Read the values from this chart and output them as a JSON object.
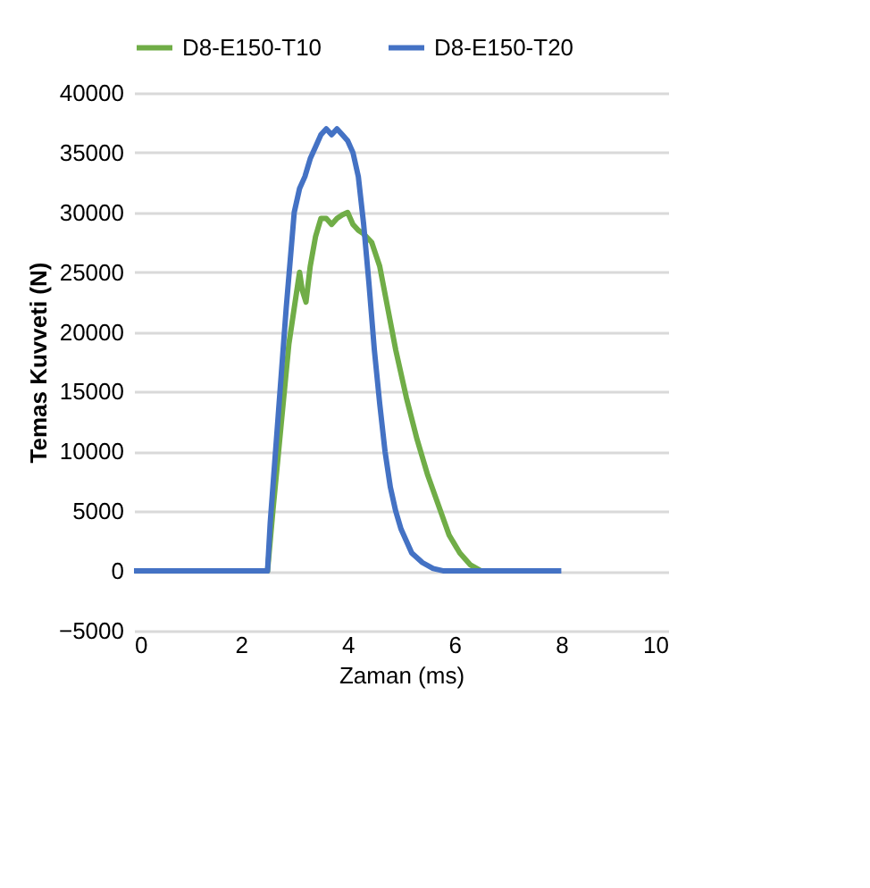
{
  "chart_data": {
    "type": "line",
    "xlabel": "Zaman (ms)",
    "ylabel": "Temas Kuvveti (N)",
    "xlim": [
      0,
      10
    ],
    "xticks": [
      0,
      2,
      4,
      6,
      8,
      10
    ],
    "ylim": [
      -5000,
      40000
    ],
    "yticks": [
      -5000,
      0,
      5000,
      10000,
      15000,
      20000,
      25000,
      30000,
      35000,
      40000
    ],
    "grid": "y",
    "legend": "top",
    "line_style": "solid",
    "marker": "none",
    "series": [
      {
        "name": "D8-E150-T10",
        "color": "#70ad47",
        "x": [
          0,
          2.5,
          2.6,
          2.75,
          2.9,
          3.0,
          3.1,
          3.15,
          3.22,
          3.3,
          3.4,
          3.5,
          3.6,
          3.7,
          3.8,
          3.9,
          4.0,
          4.1,
          4.2,
          4.3,
          4.45,
          4.6,
          4.75,
          4.9,
          5.1,
          5.3,
          5.5,
          5.7,
          5.9,
          6.1,
          6.3,
          6.5,
          6.7,
          7.0
        ],
        "values": [
          0,
          0,
          5000,
          12000,
          19000,
          22000,
          25000,
          23500,
          22500,
          25500,
          28000,
          29500,
          29500,
          29000,
          29500,
          29800,
          30000,
          29000,
          28500,
          28200,
          27500,
          25500,
          22000,
          18500,
          14500,
          11000,
          8000,
          5500,
          3000,
          1500,
          500,
          0,
          0,
          0
        ]
      },
      {
        "name": "D8-E150-T20",
        "color": "#4472c4",
        "x": [
          0,
          2.5,
          2.55,
          2.7,
          2.85,
          3.0,
          3.1,
          3.2,
          3.3,
          3.4,
          3.5,
          3.6,
          3.7,
          3.8,
          3.9,
          4.0,
          4.1,
          4.2,
          4.3,
          4.4,
          4.5,
          4.6,
          4.7,
          4.8,
          4.9,
          5.0,
          5.2,
          5.4,
          5.6,
          5.8,
          6.0,
          6.5,
          7.0,
          7.5,
          8.0
        ],
        "values": [
          0,
          0,
          4000,
          13000,
          22000,
          30000,
          32000,
          33000,
          34500,
          35500,
          36500,
          37000,
          36500,
          37000,
          36500,
          36000,
          35000,
          33000,
          29000,
          24000,
          18500,
          14000,
          10000,
          7000,
          5000,
          3500,
          1500,
          700,
          200,
          0,
          0,
          0,
          0,
          0,
          0
        ]
      }
    ]
  }
}
